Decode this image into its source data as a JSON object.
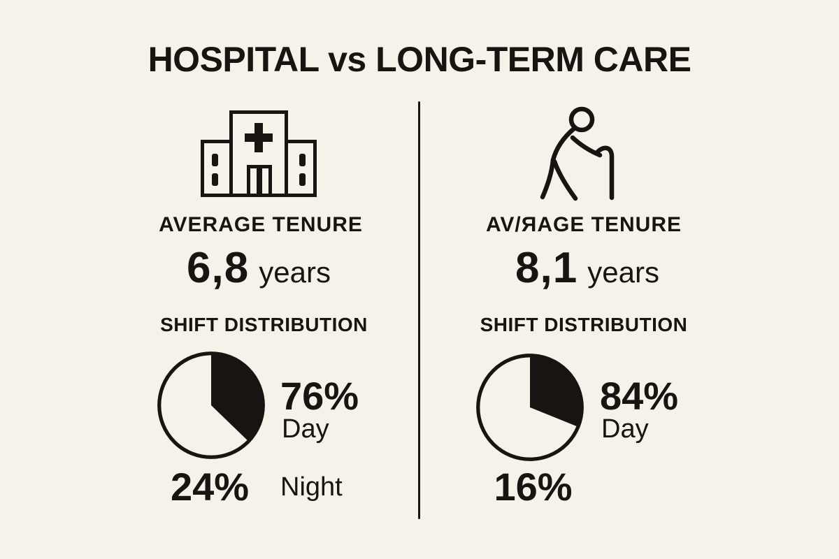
{
  "title": "HOSPITAL vs LONG-TERM CARE",
  "colors": {
    "background": "#f6f2ea",
    "ink": "#171411"
  },
  "columns": [
    {
      "icon": "hospital-building-icon",
      "tenure_label": "AVERAGE TENURE",
      "tenure_value": "6,8",
      "tenure_unit": "years",
      "shift_label": "SHIFT DISTRIBUTION",
      "day_pct": "76%",
      "day_label": "Day",
      "night_pct": "24%",
      "night_label": "Night"
    },
    {
      "icon": "elderly-person-cane-icon",
      "tenure_label": "AV/ЯAGE TENURE",
      "tenure_value": "8,1",
      "tenure_unit": "years",
      "shift_label": "SHIFT DISTRIBUTION",
      "day_pct": "84%",
      "day_label": "Day",
      "night_pct": "16%"
    }
  ],
  "chart_data": [
    {
      "type": "pie",
      "title": "Hospital shift distribution",
      "labels": [
        "Day",
        "Night"
      ],
      "values": [
        76,
        24
      ],
      "slice_colors": [
        "#171411",
        "#f6f2ea"
      ],
      "legend_position": "right-and-below",
      "drawn_start_deg": 0,
      "drawn_sweep_deg": 134
    },
    {
      "type": "pie",
      "title": "Long-term care shift distribution",
      "labels": [
        "Day",
        "Night"
      ],
      "values": [
        84,
        16
      ],
      "slice_colors": [
        "#171411",
        "#f6f2ea"
      ],
      "legend_position": "right-and-below",
      "drawn_start_deg": 0,
      "drawn_sweep_deg": 112
    }
  ]
}
